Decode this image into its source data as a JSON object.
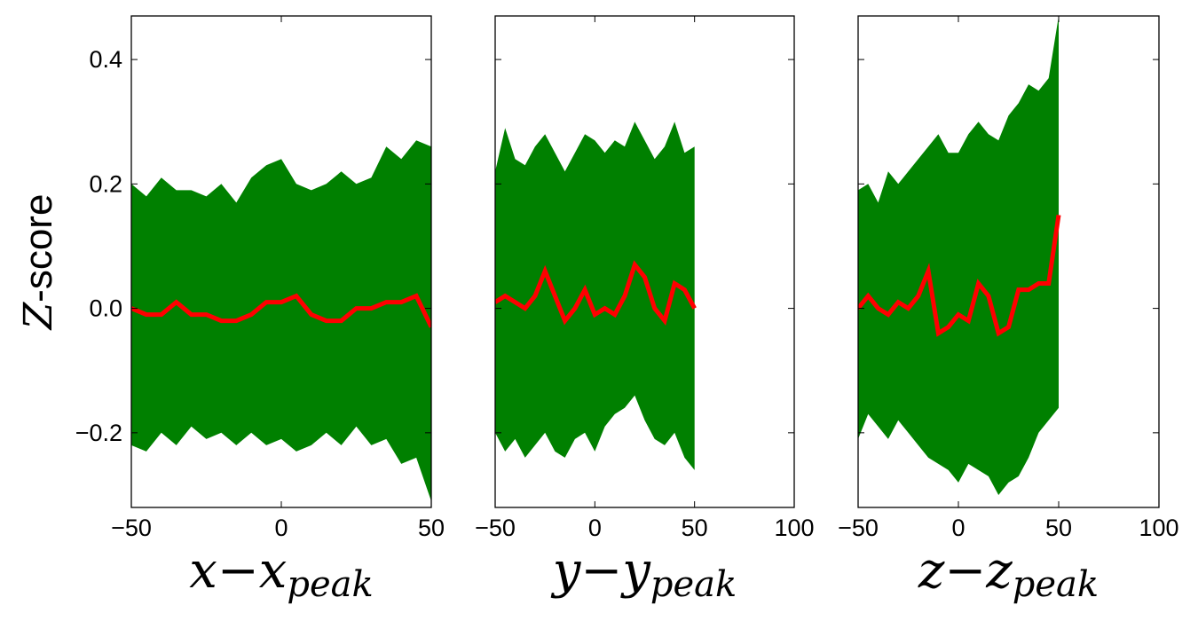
{
  "chart_data": {
    "type": "line",
    "ylabel": {
      "italic": "Z",
      "rest": "-score"
    },
    "ylim": [
      -0.32,
      0.47
    ],
    "yticks": [
      {
        "value": -0.2,
        "label": "−0.2"
      },
      {
        "value": 0.0,
        "label": "0.0"
      },
      {
        "value": 0.2,
        "label": "0.2"
      },
      {
        "value": 0.4,
        "label": "0.4"
      }
    ],
    "band_color": "#008000",
    "line_color": "#ff0000",
    "panels": [
      {
        "xlabel": {
          "main": "x−x",
          "sub": "peak"
        },
        "xlim": [
          -50,
          50
        ],
        "xticks": [
          {
            "value": -50,
            "label": "−50"
          },
          {
            "value": 0,
            "label": "0"
          },
          {
            "value": 50,
            "label": "50"
          }
        ],
        "x": [
          -50,
          -45,
          -40,
          -35,
          -30,
          -25,
          -20,
          -15,
          -10,
          -5,
          0,
          5,
          10,
          15,
          20,
          25,
          30,
          35,
          40,
          45,
          50
        ],
        "mean": [
          0.0,
          -0.01,
          -0.01,
          0.01,
          -0.01,
          -0.01,
          -0.02,
          -0.02,
          -0.01,
          0.01,
          0.01,
          0.02,
          -0.01,
          -0.02,
          -0.02,
          0.0,
          0.0,
          0.01,
          0.01,
          0.02,
          -0.03
        ],
        "upper": [
          0.2,
          0.18,
          0.21,
          0.19,
          0.19,
          0.18,
          0.2,
          0.17,
          0.21,
          0.23,
          0.24,
          0.2,
          0.19,
          0.2,
          0.22,
          0.2,
          0.21,
          0.26,
          0.24,
          0.27,
          0.26
        ],
        "lower": [
          -0.22,
          -0.23,
          -0.2,
          -0.22,
          -0.19,
          -0.21,
          -0.2,
          -0.22,
          -0.2,
          -0.22,
          -0.21,
          -0.23,
          -0.22,
          -0.2,
          -0.22,
          -0.19,
          -0.22,
          -0.21,
          -0.25,
          -0.24,
          -0.31
        ]
      },
      {
        "xlabel": {
          "main": "y−y",
          "sub": "peak"
        },
        "xlim": [
          -50,
          100
        ],
        "xticks": [
          {
            "value": -50,
            "label": "−50"
          },
          {
            "value": 0,
            "label": "0"
          },
          {
            "value": 50,
            "label": "50"
          },
          {
            "value": 100,
            "label": "100"
          }
        ],
        "x": [
          -50,
          -45,
          -40,
          -35,
          -30,
          -25,
          -20,
          -15,
          -10,
          -5,
          0,
          5,
          10,
          15,
          20,
          25,
          30,
          35,
          40,
          45,
          50
        ],
        "mean": [
          0.01,
          0.02,
          0.01,
          0.0,
          0.02,
          0.06,
          0.02,
          -0.02,
          0.0,
          0.03,
          -0.01,
          0.0,
          -0.01,
          0.02,
          0.07,
          0.05,
          0.0,
          -0.02,
          0.04,
          0.03,
          0.0
        ],
        "upper": [
          0.22,
          0.29,
          0.24,
          0.23,
          0.26,
          0.28,
          0.25,
          0.22,
          0.25,
          0.28,
          0.27,
          0.25,
          0.27,
          0.26,
          0.3,
          0.27,
          0.24,
          0.26,
          0.3,
          0.25,
          0.26
        ],
        "lower": [
          -0.2,
          -0.23,
          -0.21,
          -0.24,
          -0.22,
          -0.2,
          -0.23,
          -0.24,
          -0.21,
          -0.2,
          -0.23,
          -0.19,
          -0.17,
          -0.16,
          -0.14,
          -0.18,
          -0.21,
          -0.22,
          -0.2,
          -0.24,
          -0.26
        ]
      },
      {
        "xlabel": {
          "main": "z−z",
          "sub": "peak"
        },
        "xlim": [
          -50,
          100
        ],
        "xticks": [
          {
            "value": -50,
            "label": "−50"
          },
          {
            "value": 0,
            "label": "0"
          },
          {
            "value": 50,
            "label": "50"
          },
          {
            "value": 100,
            "label": "100"
          }
        ],
        "x": [
          -50,
          -45,
          -40,
          -35,
          -30,
          -25,
          -20,
          -15,
          -10,
          -5,
          0,
          5,
          10,
          15,
          20,
          25,
          30,
          35,
          40,
          45,
          50
        ],
        "mean": [
          0.0,
          0.02,
          0.0,
          -0.01,
          0.01,
          0.0,
          0.02,
          0.06,
          -0.04,
          -0.03,
          -0.01,
          -0.02,
          0.04,
          0.02,
          -0.04,
          -0.03,
          0.03,
          0.03,
          0.04,
          0.04,
          0.15
        ],
        "upper": [
          0.19,
          0.2,
          0.17,
          0.22,
          0.2,
          0.22,
          0.24,
          0.26,
          0.28,
          0.25,
          0.25,
          0.28,
          0.3,
          0.28,
          0.27,
          0.31,
          0.33,
          0.36,
          0.35,
          0.37,
          0.47
        ],
        "lower": [
          -0.21,
          -0.17,
          -0.19,
          -0.21,
          -0.18,
          -0.2,
          -0.22,
          -0.24,
          -0.25,
          -0.26,
          -0.28,
          -0.25,
          -0.26,
          -0.27,
          -0.3,
          -0.28,
          -0.27,
          -0.24,
          -0.2,
          -0.18,
          -0.16
        ]
      }
    ]
  }
}
